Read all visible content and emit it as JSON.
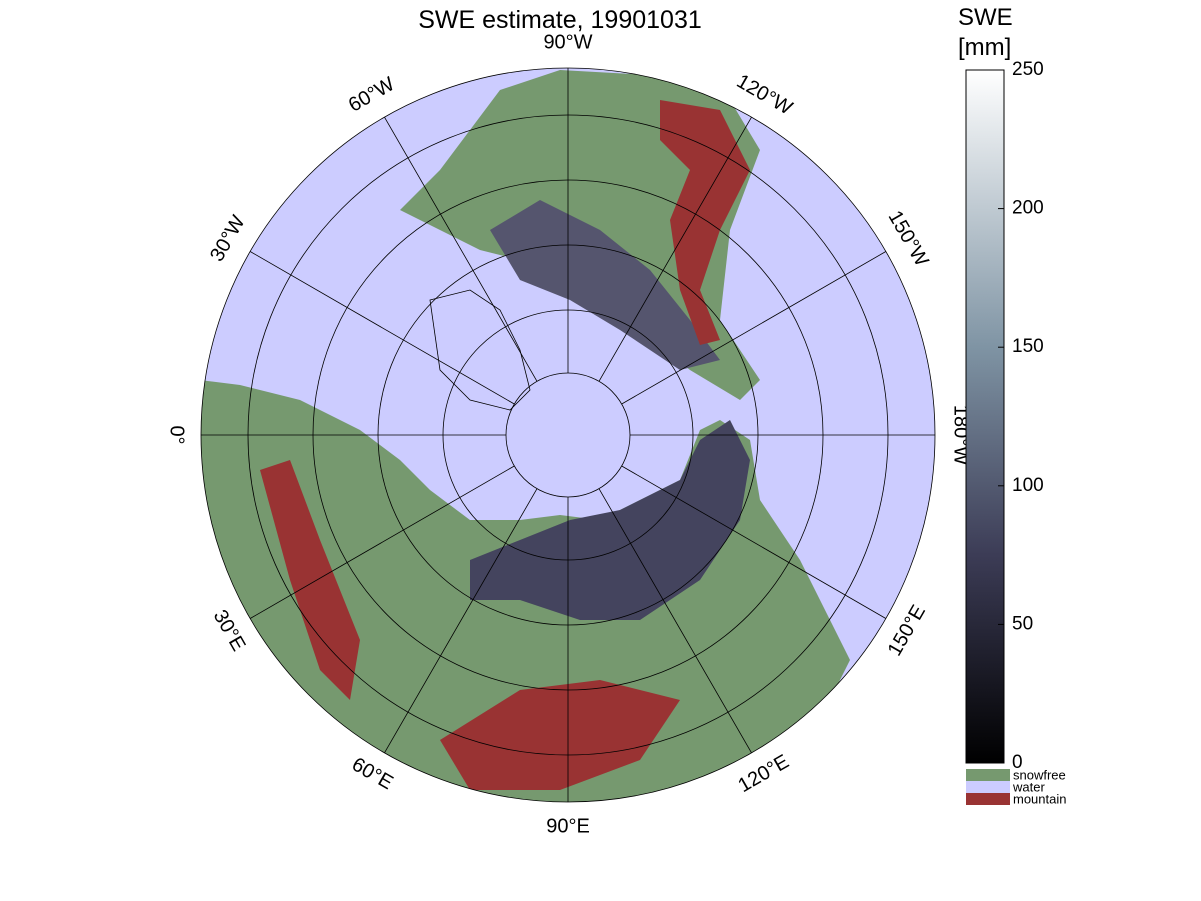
{
  "title": "SWE estimate, 19901031",
  "meridian_labels": [
    "0°",
    "30°E",
    "60°E",
    "90°E",
    "120°E",
    "150°E",
    "180°W",
    "150°W",
    "120°W",
    "90°W",
    "60°W",
    "30°W"
  ],
  "colorbar": {
    "title": [
      "SWE",
      "[mm]"
    ],
    "range": [
      0,
      250
    ],
    "ticks": [
      0,
      50,
      100,
      150,
      200,
      250
    ]
  },
  "legend": [
    {
      "label": "snowfree",
      "color": "#76996f"
    },
    {
      "label": "water",
      "color": "#ccccff"
    },
    {
      "label": "mountain",
      "color": "#993333"
    }
  ]
}
